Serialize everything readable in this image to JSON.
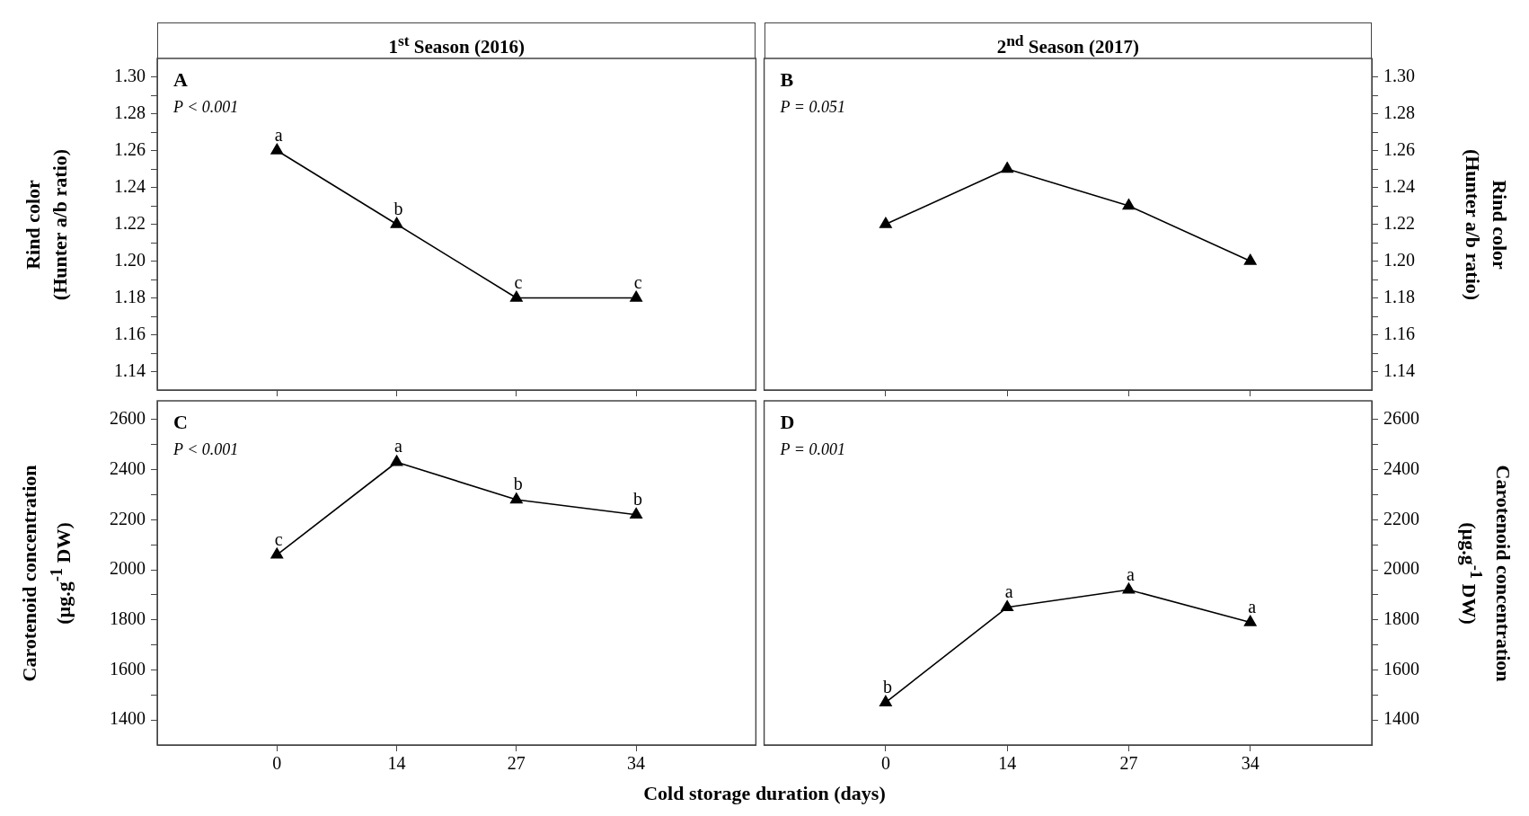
{
  "chart_data": [
    {
      "type": "line",
      "title": "1$^{st}$ Season (2016)",
      "ylabel": "Rind color\n(Hunter a/b ratio)",
      "categories": [
        "0",
        "14",
        "27",
        "34"
      ],
      "series": [
        {
          "color": "#000000",
          "values": [
            1.26,
            1.22,
            1.18,
            1.18
          ],
          "value_labels": [
            "a",
            "b",
            "c",
            "c"
          ]
        }
      ],
      "ylim": [
        1.13,
        1.31
      ],
      "yticks": [
        1.14,
        {
          "value": 1.15,
          "label": null
        },
        1.16,
        {
          "value": 1.17,
          "label": null
        },
        1.18,
        {
          "value": 1.19,
          "label": null
        },
        {
          "value": 1.2,
          "label": "1.20"
        },
        {
          "value": 1.21,
          "label": null
        },
        1.22,
        {
          "value": 1.23,
          "label": null
        },
        1.24,
        {
          "value": 1.25,
          "label": null
        },
        1.26,
        {
          "value": 1.27,
          "label": null
        },
        1.28,
        {
          "value": 1.29,
          "label": null
        },
        {
          "value": 1.3,
          "label": "1.30"
        }
      ],
      "annotations": [
        "A",
        "P < 0.001"
      ],
      "marker": "triangle",
      "grid": false,
      "legend": false,
      "tick_labels": "y"
    },
    {
      "type": "line",
      "title": "2$^{nd}$ Season (2017)",
      "y2label": "Rind color\n(Hunter a/b ratio)",
      "categories": [
        "0",
        "14",
        "27",
        "34"
      ],
      "series": [
        {
          "color": "#000000",
          "axis": "y2",
          "values": [
            1.22,
            1.25,
            1.23,
            1.2
          ]
        }
      ],
      "y2lim": [
        1.13,
        1.31
      ],
      "y2ticks": [
        1.14,
        {
          "value": 1.15,
          "label": null
        },
        1.16,
        {
          "value": 1.17,
          "label": null
        },
        1.18,
        {
          "value": 1.19,
          "label": null
        },
        {
          "value": 1.2,
          "label": "1.20"
        },
        {
          "value": 1.21,
          "label": null
        },
        1.22,
        {
          "value": 1.23,
          "label": null
        },
        1.24,
        {
          "value": 1.25,
          "label": null
        },
        1.26,
        {
          "value": 1.27,
          "label": null
        },
        1.28,
        {
          "value": 1.29,
          "label": null
        },
        {
          "value": 1.3,
          "label": "1.30"
        }
      ],
      "annotations": [
        "B",
        "P = 0.051"
      ],
      "marker": "triangle",
      "grid": false,
      "legend": false,
      "tick_labels": "y"
    },
    {
      "type": "line",
      "ylabel": "Carotenoid concentration\n(µg.g$^{-1}$ DW)",
      "xlabel": "Cold storage duration (days)",
      "categories": [
        "0",
        "14",
        "27",
        "34"
      ],
      "series": [
        {
          "color": "#000000",
          "values": [
            2060,
            2430,
            2280,
            2220
          ],
          "value_labels": [
            "c",
            "a",
            "b",
            "b"
          ]
        }
      ],
      "ylim": [
        1300,
        2675
      ],
      "yticks": [
        1400,
        {
          "value": 1500,
          "label": null
        },
        1600,
        {
          "value": 1700,
          "label": null
        },
        1800,
        {
          "value": 1900,
          "label": null
        },
        2000,
        {
          "value": 2100,
          "label": null
        },
        2200,
        {
          "value": 2300,
          "label": null
        },
        2400,
        {
          "value": 2500,
          "label": null
        },
        2600
      ],
      "annotations": [
        "C",
        "P < 0.001"
      ],
      "marker": "triangle",
      "grid": false,
      "legend": false
    },
    {
      "type": "line",
      "y2label": "Carotenoid concentration\n(µg.g$^{-1}$ DW)",
      "categories": [
        "0",
        "14",
        "27",
        "34"
      ],
      "series": [
        {
          "color": "#000000",
          "axis": "y2",
          "values": [
            1470,
            1850,
            1920,
            1790
          ],
          "value_labels": [
            "b",
            "a",
            "a",
            "a"
          ]
        }
      ],
      "y2lim": [
        1300,
        2675
      ],
      "y2ticks": [
        1400,
        {
          "value": 1500,
          "label": null
        },
        1600,
        {
          "value": 1700,
          "label": null
        },
        1800,
        {
          "value": 1900,
          "label": null
        },
        2000,
        {
          "value": 2100,
          "label": null
        },
        2200,
        {
          "value": 2300,
          "label": null
        },
        2400,
        {
          "value": 2500,
          "label": null
        },
        2600
      ],
      "annotations": [
        "D",
        "P = 0.001"
      ],
      "marker": "triangle",
      "grid": false,
      "legend": false
    }
  ]
}
